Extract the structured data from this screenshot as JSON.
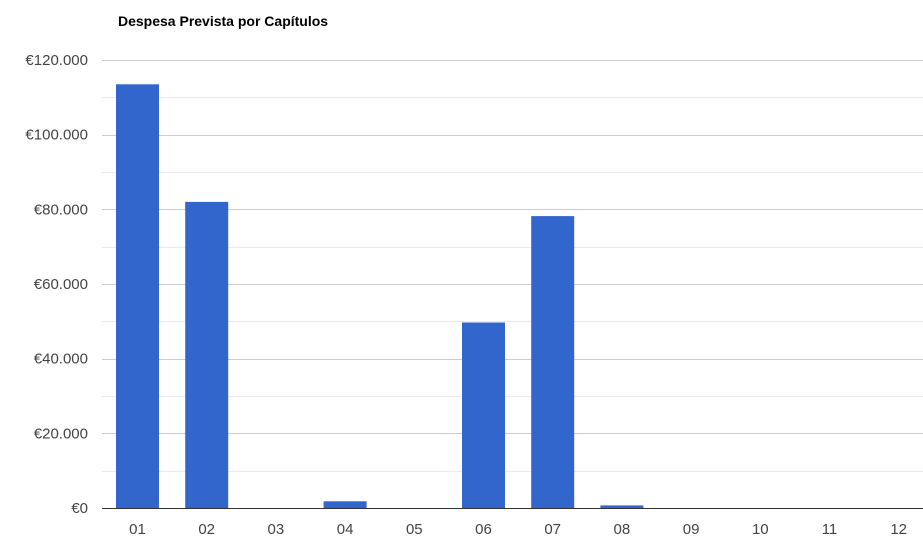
{
  "chart_data": {
    "type": "bar",
    "title": "Despesa Prevista por Capítulos",
    "xlabel": "",
    "ylabel": "",
    "categories": [
      "01",
      "02",
      "03",
      "04",
      "05",
      "06",
      "07",
      "08",
      "09",
      "10",
      "11",
      "12"
    ],
    "values": [
      113500,
      82000,
      0,
      1800,
      0,
      49700,
      78200,
      700,
      0,
      0,
      0,
      0
    ],
    "ylim": [
      0,
      120000
    ],
    "yticks": [
      0,
      20000,
      40000,
      60000,
      80000,
      100000,
      120000
    ],
    "ytick_labels": [
      "€0",
      "€20.000",
      "€40.000",
      "€60.000",
      "€80.000",
      "€100.000",
      "€120.000"
    ],
    "grid": true,
    "legend": "none",
    "colors": {
      "bar": "#3366cc",
      "major_grid": "#cccccc",
      "minor_grid": "#ebebeb",
      "baseline": "#333333"
    }
  }
}
